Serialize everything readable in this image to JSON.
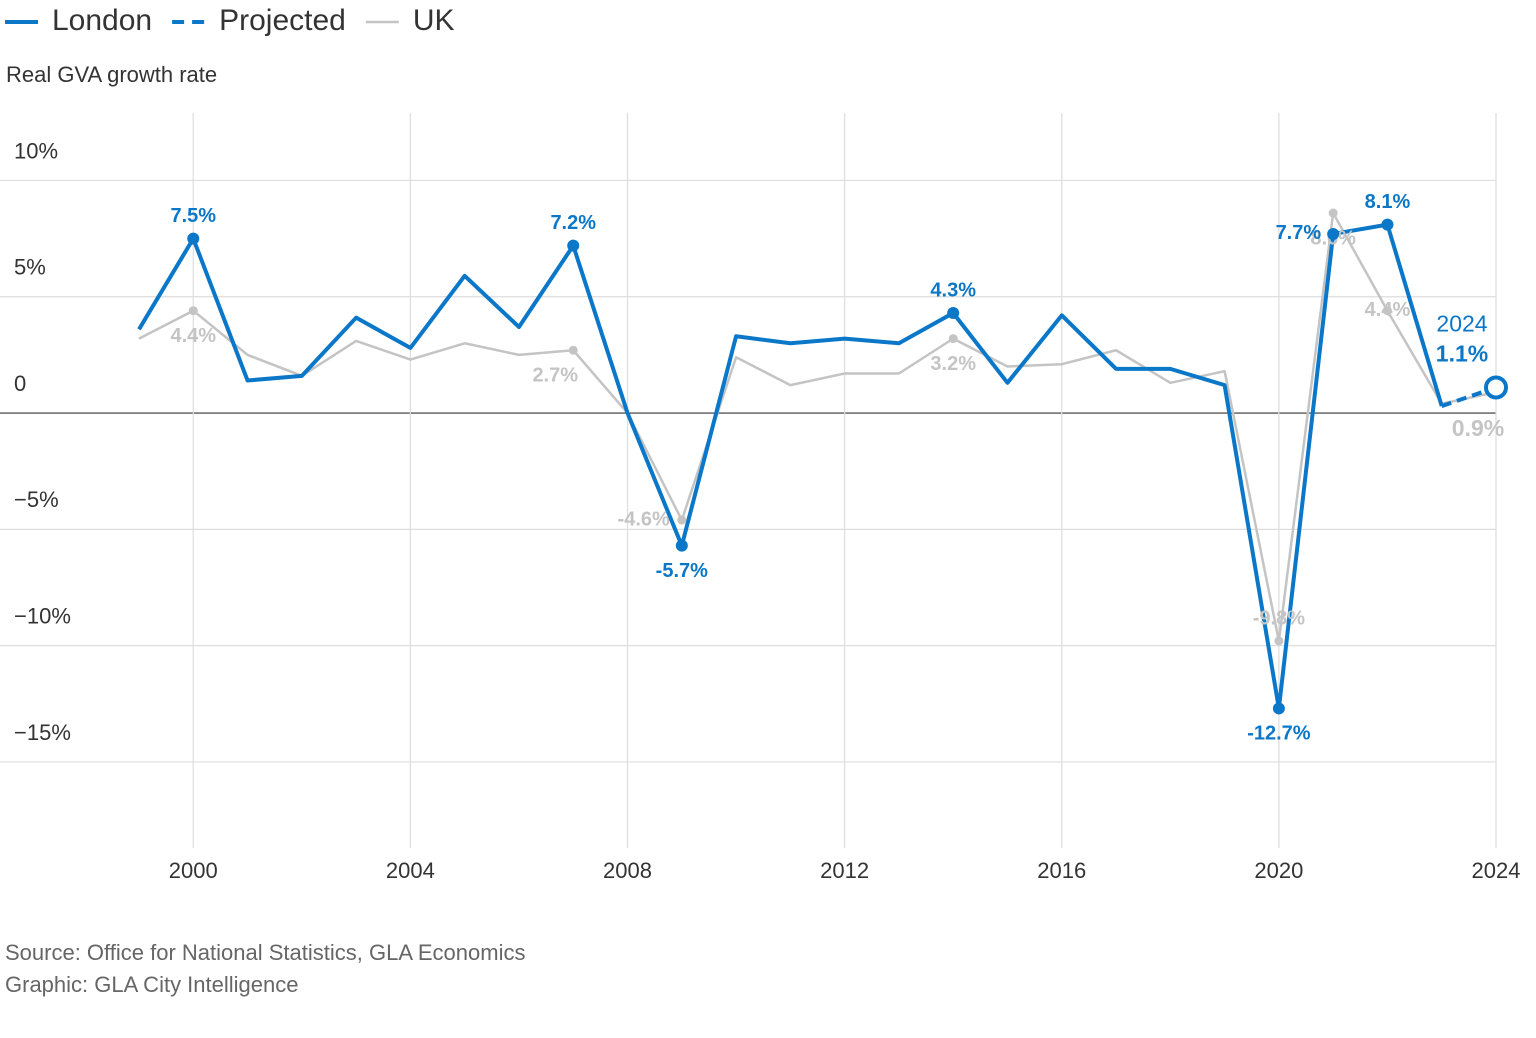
{
  "chart_data": {
    "type": "line",
    "y_label": "Real GVA growth rate",
    "x": [
      1999,
      2000,
      2001,
      2002,
      2003,
      2004,
      2005,
      2006,
      2007,
      2008,
      2009,
      2010,
      2011,
      2012,
      2013,
      2014,
      2015,
      2016,
      2017,
      2018,
      2019,
      2020,
      2021,
      2022,
      2023,
      2024
    ],
    "series": [
      {
        "name": "London",
        "color": "#0b77c8",
        "values": [
          3.6,
          7.5,
          1.4,
          1.6,
          4.1,
          2.8,
          5.9,
          3.7,
          7.2,
          0,
          -5.7,
          3.3,
          3.0,
          3.2,
          3.0,
          4.3,
          1.3,
          4.2,
          1.9,
          1.9,
          1.2,
          -12.7,
          7.7,
          8.1,
          0.3,
          null
        ],
        "value_labels": [
          null,
          "7.5%",
          null,
          null,
          null,
          null,
          null,
          null,
          "7.2%",
          null,
          "-5.7%",
          null,
          null,
          null,
          null,
          "4.3%",
          null,
          null,
          null,
          null,
          null,
          "-12.7%",
          "7.7%",
          "8.1%",
          null,
          null
        ]
      },
      {
        "name": "Projected",
        "color": "#0b77c8",
        "dashed": true,
        "values": [
          null,
          null,
          null,
          null,
          null,
          null,
          null,
          null,
          null,
          null,
          null,
          null,
          null,
          null,
          null,
          null,
          null,
          null,
          null,
          null,
          null,
          null,
          null,
          null,
          0.3,
          1.1
        ],
        "value_labels": [
          null,
          null,
          null,
          null,
          null,
          null,
          null,
          null,
          null,
          null,
          null,
          null,
          null,
          null,
          null,
          null,
          null,
          null,
          null,
          null,
          null,
          null,
          null,
          null,
          null,
          "1.1%"
        ]
      },
      {
        "name": "UK",
        "color": "#c4c4c4",
        "values": [
          3.2,
          4.4,
          2.5,
          1.6,
          3.1,
          2.3,
          3.0,
          2.5,
          2.7,
          0,
          -4.6,
          2.4,
          1.2,
          1.7,
          1.7,
          3.2,
          2.0,
          2.1,
          2.7,
          1.3,
          1.8,
          -9.8,
          8.6,
          4.4,
          0.4,
          0.9
        ],
        "value_labels": [
          null,
          "4.4%",
          null,
          null,
          null,
          null,
          null,
          null,
          "2.7%",
          null,
          "-4.6%",
          null,
          null,
          null,
          null,
          "3.2%",
          null,
          null,
          null,
          null,
          null,
          "-9.8%",
          "8.6%",
          "4.4%",
          null,
          "0.9%"
        ]
      }
    ],
    "annotation": "2024",
    "xlim": [
      1999,
      2024
    ],
    "xticks": [
      2000,
      2004,
      2008,
      2012,
      2016,
      2020,
      2024
    ],
    "ylim": [
      -18.7,
      12.9
    ],
    "yticks": [
      {
        "value": -15,
        "label": "−15%"
      },
      {
        "value": -10,
        "label": "−10%"
      },
      {
        "value": -5,
        "label": "−5%"
      },
      0,
      {
        "value": 5,
        "label": "5%"
      },
      {
        "value": 10,
        "label": "10%"
      }
    ],
    "grid": true,
    "source": [
      "Source: Office for National Statistics, GLA Economics",
      "Graphic: GLA City Intelligence"
    ]
  }
}
